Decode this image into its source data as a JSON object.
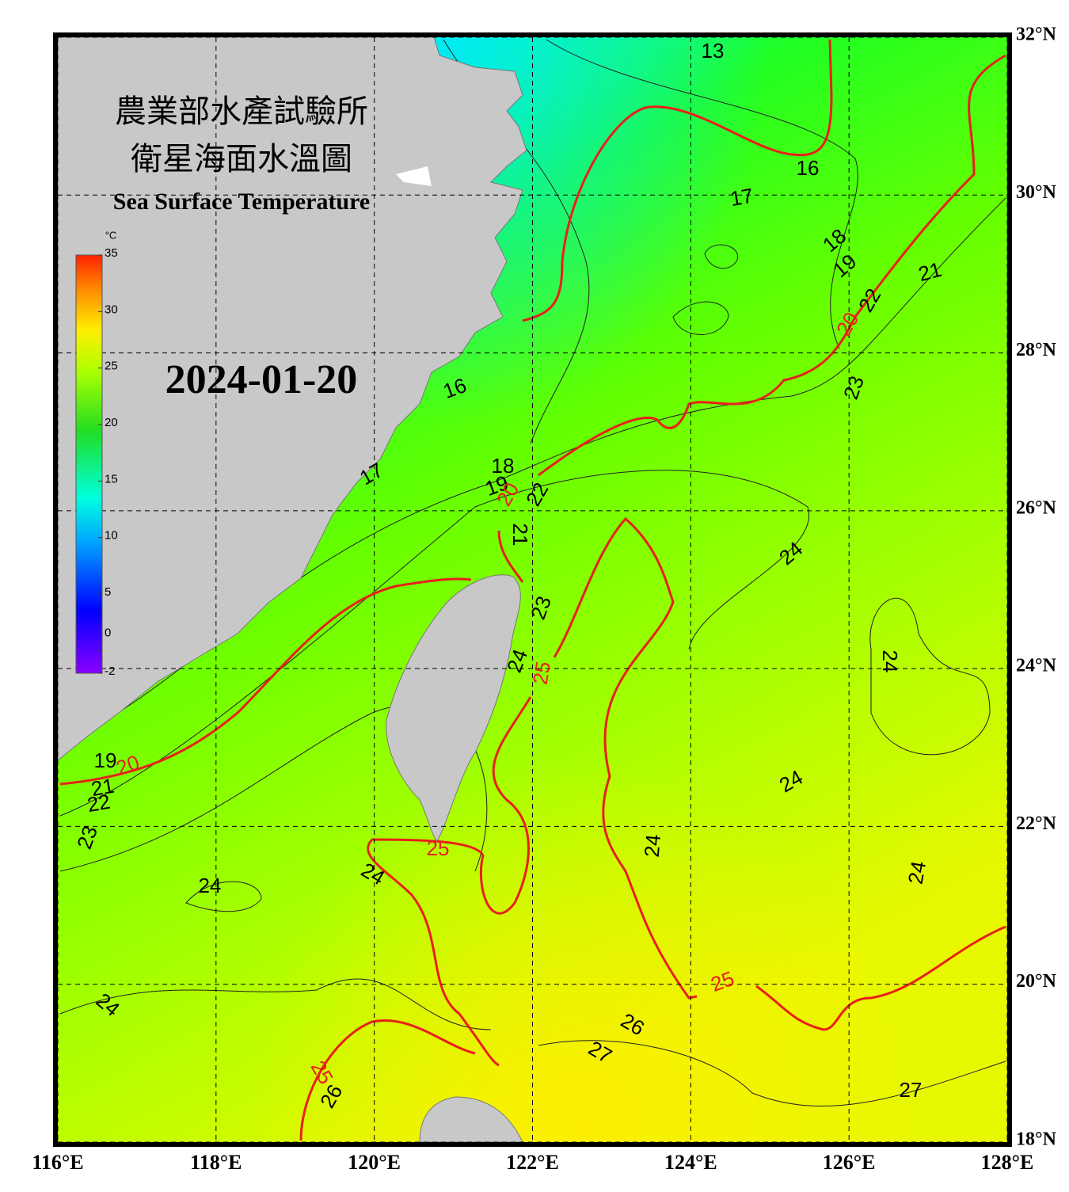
{
  "header": {
    "title_zh_1": "農業部水產試驗所",
    "title_zh_2": "衛星海面水溫圖",
    "title_en": "Sea Surface Temperature",
    "date": "2024-01-20"
  },
  "colorbar": {
    "unit": "°C",
    "ticks": [
      35,
      30,
      25,
      20,
      15,
      10,
      5,
      0,
      -2
    ]
  },
  "axes": {
    "lon_ticks": [
      {
        "value": 116,
        "label": "116°E"
      },
      {
        "value": 118,
        "label": "118°E"
      },
      {
        "value": 120,
        "label": "120°E"
      },
      {
        "value": 122,
        "label": "122°E"
      },
      {
        "value": 124,
        "label": "124°E"
      },
      {
        "value": 126,
        "label": "126°E"
      },
      {
        "value": 128,
        "label": "128°E"
      }
    ],
    "lat_ticks": [
      {
        "value": 18,
        "label": "18°N"
      },
      {
        "value": 20,
        "label": "20°N"
      },
      {
        "value": 22,
        "label": "22°N"
      },
      {
        "value": 24,
        "label": "24°N"
      },
      {
        "value": 26,
        "label": "26°N"
      },
      {
        "value": 28,
        "label": "28°N"
      },
      {
        "value": 30,
        "label": "30°N"
      },
      {
        "value": 32,
        "label": "32°N"
      }
    ]
  },
  "contour_labels": [
    13,
    16,
    17,
    18,
    19,
    20,
    21,
    22,
    23,
    16,
    17,
    18,
    19,
    20,
    22,
    21,
    23,
    24,
    25,
    24,
    24,
    24,
    24,
    24,
    24,
    19,
    20,
    21,
    22,
    23,
    24,
    24,
    25,
    25,
    26,
    26,
    27,
    27,
    25
  ]
}
